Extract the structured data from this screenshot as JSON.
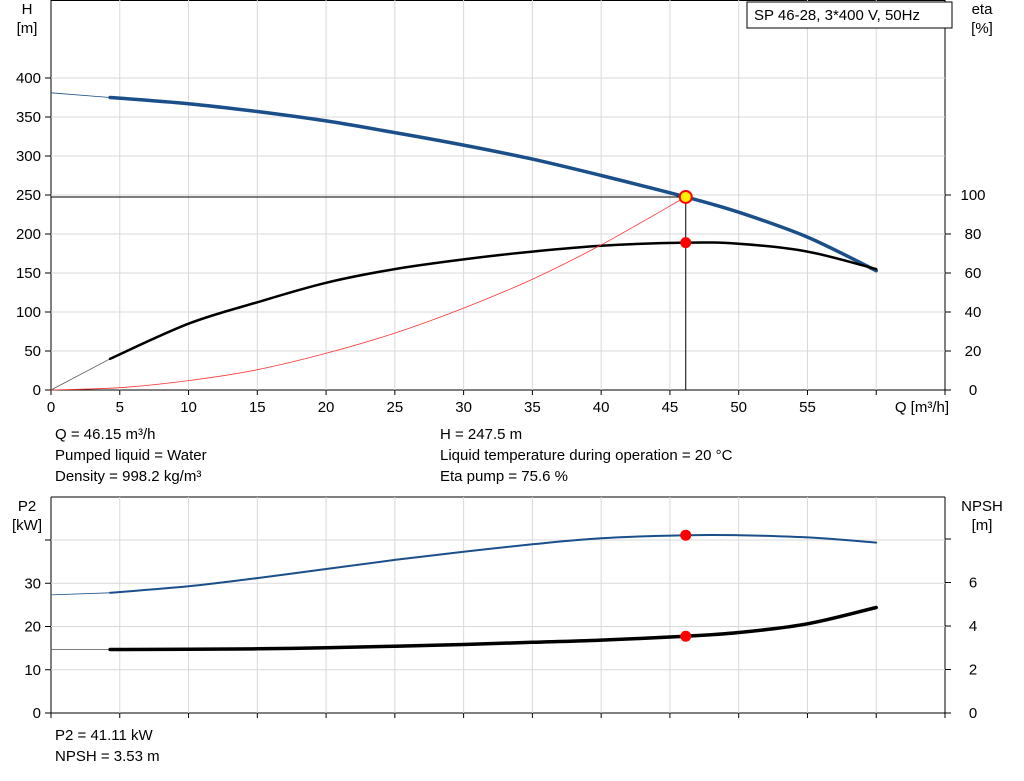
{
  "pump_label": "SP 46-28, 3*400 V, 50Hz",
  "colors": {
    "head": "#1a4f8a",
    "eta": "#000000",
    "system_curve": "#ff3333",
    "marker": "#ff0000",
    "marker_highlight": "#ffee00",
    "grid": "#d9d9d9"
  },
  "chart_data": [
    {
      "type": "line",
      "title": "",
      "left_axis": {
        "label": [
          "H",
          "[m]"
        ],
        "ylim": [
          0,
          400
        ],
        "ticks": [
          0,
          50,
          100,
          150,
          200,
          250,
          300,
          350,
          400
        ]
      },
      "right_axis": {
        "label": [
          "eta",
          "[%]"
        ],
        "ylim": [
          0,
          100
        ],
        "ticks": [
          0,
          20,
          40,
          60,
          80,
          100
        ]
      },
      "x_axis": {
        "label": "Q [m³/h]",
        "xlim": [
          0,
          65
        ],
        "ticks": [
          0,
          5,
          10,
          15,
          20,
          25,
          30,
          35,
          40,
          45,
          50,
          55
        ]
      },
      "grid": true,
      "series": [
        {
          "axis": "left",
          "x": [
            0,
            4.3
          ],
          "values": [
            381,
            375
          ],
          "style": "extension"
        },
        {
          "axis": "left",
          "x": [
            4.3,
            10,
            15,
            20,
            25,
            30,
            35,
            40,
            46.15,
            50,
            55,
            60
          ],
          "values": [
            375,
            367,
            357,
            345,
            330,
            314,
            296,
            275,
            247.5,
            228,
            196,
            153
          ]
        },
        {
          "axis": "right",
          "x": [
            0,
            4.3
          ],
          "values": [
            0,
            16
          ],
          "style": "extension"
        },
        {
          "axis": "right",
          "x": [
            4.3,
            10,
            15,
            20,
            25,
            30,
            35,
            40,
            46.15,
            50,
            55,
            60
          ],
          "values": [
            16,
            34,
            45,
            55,
            62,
            67,
            71,
            74,
            75.6,
            75,
            71,
            62
          ]
        },
        {
          "axis": "left",
          "x": [
            0,
            5,
            10,
            15,
            20,
            25,
            30,
            35,
            40,
            46.15
          ],
          "values": [
            0,
            3,
            12,
            26,
            47,
            73,
            105,
            142,
            186,
            247.5
          ],
          "style": "system"
        }
      ],
      "duty_point": {
        "x": 46.15,
        "h": 247.5,
        "eta": 75.6
      }
    },
    {
      "type": "line",
      "title": "",
      "left_axis": {
        "label": [
          "P2",
          "[kW]"
        ],
        "ylim": [
          0,
          45
        ],
        "ticks": [
          0,
          10,
          20,
          30
        ],
        "extra_ticks": [
          40
        ]
      },
      "right_axis": {
        "label": [
          "NPSH",
          "[m]"
        ],
        "ylim": [
          0,
          9
        ],
        "ticks": [
          0,
          2,
          4,
          6
        ],
        "extra_ticks": [
          8
        ]
      },
      "x_axis": {
        "xlim": [
          0,
          65
        ],
        "ticks": [
          0,
          5,
          10,
          15,
          20,
          25,
          30,
          35,
          40,
          45,
          50,
          55
        ]
      },
      "grid": true,
      "series": [
        {
          "axis": "left",
          "x": [
            0,
            4.3
          ],
          "values": [
            27.3,
            27.8
          ],
          "style": "extension"
        },
        {
          "axis": "left",
          "x": [
            4.3,
            10,
            15,
            20,
            25,
            30,
            35,
            40,
            46.15,
            50,
            55,
            60
          ],
          "values": [
            27.8,
            29.3,
            31.2,
            33.3,
            35.4,
            37.3,
            39.0,
            40.4,
            41.11,
            41.1,
            40.6,
            39.4
          ]
        },
        {
          "axis": "right",
          "x": [
            0,
            4.3
          ],
          "values": [
            2.92,
            2.92
          ],
          "style": "extension"
        },
        {
          "axis": "right",
          "x": [
            4.3,
            10,
            15,
            20,
            25,
            30,
            35,
            40,
            46.15,
            50,
            55,
            60
          ],
          "values": [
            2.92,
            2.93,
            2.95,
            3.0,
            3.07,
            3.15,
            3.25,
            3.35,
            3.53,
            3.7,
            4.1,
            4.85
          ]
        }
      ],
      "duty_point": {
        "x": 46.15,
        "p2": 41.11,
        "npsh": 3.53
      }
    }
  ],
  "info_top": {
    "q": "Q = 46.15 m³/h",
    "liquid": "Pumped liquid = Water",
    "density": "Density = 998.2 kg/m³",
    "h": "H = 247.5 m",
    "temperature": "Liquid temperature during operation = 20 °C",
    "eta": "Eta pump = 75.6 %"
  },
  "info_bottom": {
    "p2": "P2 = 41.11 kW",
    "npsh": "NPSH = 3.53 m"
  }
}
